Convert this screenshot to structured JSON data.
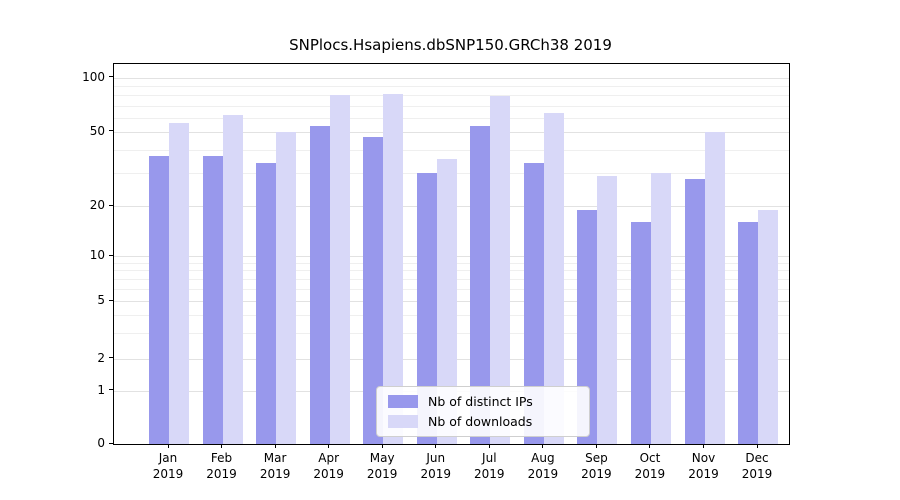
{
  "chart_data": {
    "type": "bar",
    "title": "SNPlocs.Hsapiens.dbSNP150.GRCh38 2019",
    "categories": [
      "Jan",
      "Feb",
      "Mar",
      "Apr",
      "May",
      "Jun",
      "Jul",
      "Aug",
      "Sep",
      "Oct",
      "Nov",
      "Dec"
    ],
    "year": "2019",
    "series": [
      {
        "name": "Nb of distinct IPs",
        "color": "#9898ec",
        "values": [
          37,
          37,
          34,
          54,
          47,
          30,
          54,
          34,
          19,
          16,
          28,
          16
        ]
      },
      {
        "name": "Nb of downloads",
        "color": "#d8d8f8",
        "values": [
          56,
          62,
          50,
          80,
          81,
          36,
          79,
          64,
          29,
          30,
          50,
          19
        ]
      }
    ],
    "yscale": "log-with-zero-baseline",
    "y_ticks": [
      0,
      1,
      2,
      5,
      10,
      20,
      50,
      100
    ],
    "minor_grid_values": [
      3,
      4,
      6,
      7,
      8,
      9,
      30,
      40,
      60,
      70,
      80,
      90
    ],
    "ylim": [
      0,
      130
    ],
    "grid": true,
    "legend_position": "lower center",
    "axis_color": "#000000",
    "grid_color": "#e2e2e2"
  }
}
